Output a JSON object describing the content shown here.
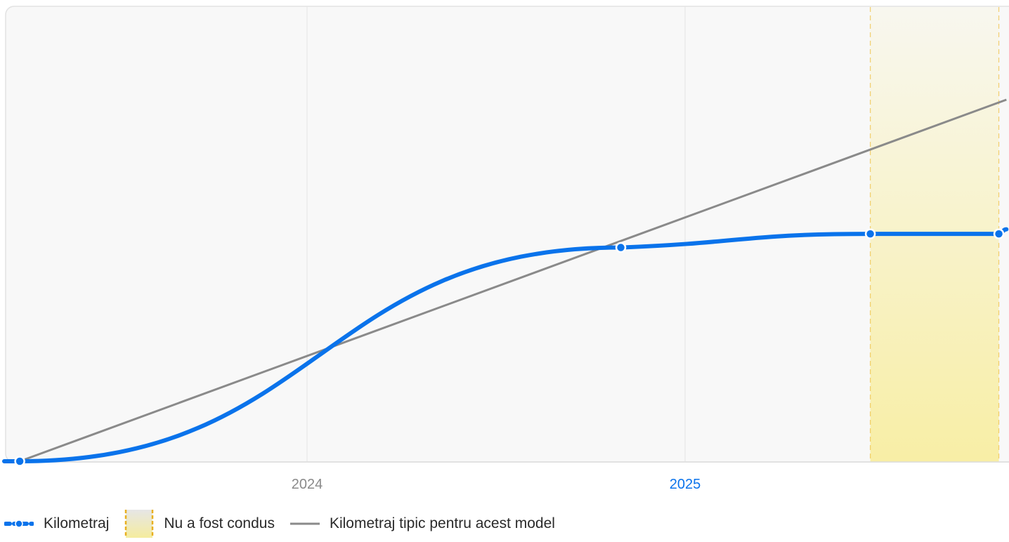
{
  "chart_data": {
    "type": "line",
    "x_axis": {
      "ticks": [
        {
          "label": "2024",
          "value": 2024.0,
          "highlight": false
        },
        {
          "label": "2025",
          "value": 2025.0,
          "highlight": true
        }
      ],
      "range": [
        2023.2,
        2025.85
      ]
    },
    "y_axis": {
      "range": [
        0,
        100
      ],
      "labels_visible": false
    },
    "grid": true,
    "series": [
      {
        "name": "Kilometraj",
        "color": "#0a73eb",
        "style": "smooth-line-with-markers",
        "points": [
          {
            "x": 2023.24,
            "y": 0
          },
          {
            "x": 2024.83,
            "y": 47
          },
          {
            "x": 2025.49,
            "y": 50
          },
          {
            "x": 2025.83,
            "y": 50
          },
          {
            "x": 2025.85,
            "y": 51
          }
        ]
      },
      {
        "name": "Kilometraj tipic pentru acest model",
        "color": "#8a8a8a",
        "style": "straight-line",
        "points": [
          {
            "x": 2023.24,
            "y": 0
          },
          {
            "x": 2025.85,
            "y": 79.5
          }
        ]
      }
    ],
    "annotations": [
      {
        "name": "Nu a fost condus",
        "type": "band",
        "x_start": 2025.49,
        "x_end": 2025.83,
        "color": "#f8eb8a"
      }
    ],
    "legend_position": "bottom-left"
  },
  "legend": [
    {
      "label": "Kilometraj",
      "kind": "series-line"
    },
    {
      "label": "Nu a fost condus",
      "kind": "band"
    },
    {
      "label": "Kilometraj tipic pentru acest model",
      "kind": "reference-line"
    }
  ],
  "colors": {
    "plot_background": "#f8f8f8",
    "tick_default": "#8a8a8a",
    "tick_highlight": "#0a73eb",
    "band_edge": "#f0c040"
  }
}
